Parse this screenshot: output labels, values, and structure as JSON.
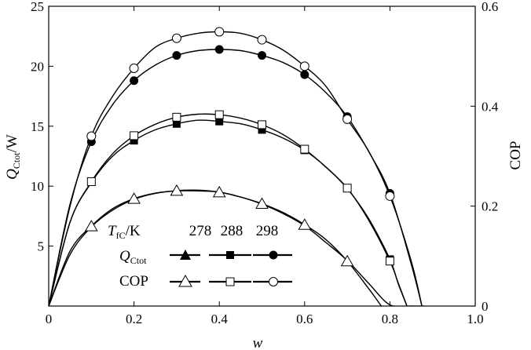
{
  "chart_data": {
    "type": "line",
    "xlabel": "w",
    "ylabel_left": "Q_Ctot/W",
    "ylabel_right": "COP",
    "xlim": [
      0,
      1.0
    ],
    "ylim_left": [
      0,
      25
    ],
    "ylim_right": [
      0,
      0.6
    ],
    "x_ticks": [
      "0",
      "0.2",
      "0.4",
      "0.6",
      "0.8",
      "1.0"
    ],
    "y_left_ticks": [
      "5",
      "10",
      "15",
      "20",
      "25"
    ],
    "y_right_ticks": [
      "0",
      "0.2",
      "0.4",
      "0.6"
    ],
    "grid": false,
    "legend": {
      "placement": "lower-left",
      "header_label": "T_fC/K",
      "temperatures": [
        "278",
        "288",
        "298"
      ],
      "row_labels": [
        "Q_Ctot",
        "COP"
      ]
    },
    "series": [
      {
        "name": "Q_Ctot 278",
        "axis": "left",
        "marker": "filled-triangle",
        "curve_x": [
          0,
          0.05,
          0.1,
          0.15,
          0.2,
          0.25,
          0.3,
          0.35,
          0.4,
          0.45,
          0.5,
          0.55,
          0.6,
          0.65,
          0.7,
          0.75,
          0.8,
          0.85,
          0.88
        ],
        "curve_y": [
          0,
          4.3,
          6.6,
          8.0,
          8.9,
          9.4,
          9.6,
          9.6,
          9.5,
          9.1,
          8.5,
          7.7,
          6.7,
          5.3,
          3.8,
          1.9,
          0.1,
          0,
          0
        ],
        "points_x": [],
        "points_y": []
      },
      {
        "name": "Q_Ctot 288",
        "axis": "left",
        "marker": "filled-square",
        "curve_x": [
          0,
          0.05,
          0.1,
          0.15,
          0.2,
          0.25,
          0.3,
          0.35,
          0.4,
          0.45,
          0.5,
          0.55,
          0.6,
          0.65,
          0.7,
          0.75,
          0.8,
          0.82,
          0.84
        ],
        "curve_y": [
          0,
          7.0,
          10.3,
          12.5,
          13.8,
          14.7,
          15.2,
          15.5,
          15.4,
          15.2,
          14.7,
          14.0,
          13.0,
          11.6,
          9.8,
          7.3,
          3.9,
          1.8,
          0
        ],
        "points_x": [
          0.2,
          0.3,
          0.4,
          0.5,
          0.6,
          0.8
        ],
        "points_y": [
          13.8,
          15.2,
          15.4,
          14.7,
          13.0,
          3.9
        ]
      },
      {
        "name": "Q_Ctot 298",
        "axis": "left",
        "marker": "filled-circle",
        "curve_x": [
          0,
          0.05,
          0.1,
          0.15,
          0.2,
          0.25,
          0.3,
          0.35,
          0.4,
          0.45,
          0.5,
          0.55,
          0.6,
          0.65,
          0.7,
          0.75,
          0.8,
          0.85,
          0.875
        ],
        "curve_y": [
          0,
          8.5,
          13.7,
          16.8,
          18.8,
          20.1,
          20.9,
          21.3,
          21.4,
          21.3,
          20.9,
          20.3,
          19.3,
          17.8,
          15.8,
          12.9,
          9.4,
          3.5,
          0
        ],
        "points_x": [
          0.1,
          0.2,
          0.3,
          0.4,
          0.5,
          0.6,
          0.7,
          0.8
        ],
        "points_y": [
          13.7,
          18.8,
          20.9,
          21.4,
          20.9,
          19.3,
          15.8,
          9.4
        ]
      },
      {
        "name": "COP 278",
        "axis": "right",
        "marker": "open-triangle",
        "curve_x": [
          0,
          0.05,
          0.1,
          0.15,
          0.2,
          0.25,
          0.3,
          0.35,
          0.4,
          0.45,
          0.5,
          0.55,
          0.6,
          0.65,
          0.7,
          0.75,
          0.78
        ],
        "curve_y": [
          0,
          0.11,
          0.16,
          0.195,
          0.215,
          0.226,
          0.231,
          0.232,
          0.228,
          0.218,
          0.205,
          0.187,
          0.163,
          0.133,
          0.09,
          0.035,
          0
        ],
        "points_x": [
          0.1,
          0.2,
          0.3,
          0.4,
          0.5,
          0.6,
          0.7
        ],
        "points_y": [
          0.16,
          0.215,
          0.231,
          0.228,
          0.205,
          0.163,
          0.09
        ]
      },
      {
        "name": "COP 288",
        "axis": "right",
        "marker": "open-square",
        "curve_x": [
          0,
          0.05,
          0.1,
          0.15,
          0.2,
          0.25,
          0.3,
          0.35,
          0.4,
          0.45,
          0.5,
          0.55,
          0.6,
          0.65,
          0.7,
          0.75,
          0.8,
          0.82,
          0.84
        ],
        "curve_y": [
          0,
          0.168,
          0.249,
          0.305,
          0.341,
          0.364,
          0.378,
          0.384,
          0.383,
          0.376,
          0.363,
          0.343,
          0.314,
          0.278,
          0.236,
          0.172,
          0.09,
          0.045,
          0
        ],
        "points_x": [
          0.1,
          0.2,
          0.3,
          0.4,
          0.5,
          0.6,
          0.7,
          0.8
        ],
        "points_y": [
          0.249,
          0.341,
          0.378,
          0.383,
          0.363,
          0.314,
          0.236,
          0.09
        ]
      },
      {
        "name": "COP 298",
        "axis": "right",
        "marker": "open-circle",
        "curve_x": [
          0,
          0.05,
          0.1,
          0.15,
          0.2,
          0.25,
          0.3,
          0.35,
          0.4,
          0.45,
          0.5,
          0.55,
          0.6,
          0.65,
          0.7,
          0.75,
          0.8,
          0.85,
          0.875
        ],
        "curve_y": [
          0,
          0.2,
          0.34,
          0.42,
          0.476,
          0.518,
          0.536,
          0.546,
          0.549,
          0.546,
          0.533,
          0.512,
          0.48,
          0.44,
          0.374,
          0.31,
          0.22,
          0.09,
          0
        ],
        "points_x": [
          0.1,
          0.2,
          0.3,
          0.4,
          0.5,
          0.6,
          0.7,
          0.8
        ],
        "points_y": [
          0.34,
          0.476,
          0.536,
          0.549,
          0.533,
          0.48,
          0.374,
          0.22
        ]
      }
    ]
  }
}
